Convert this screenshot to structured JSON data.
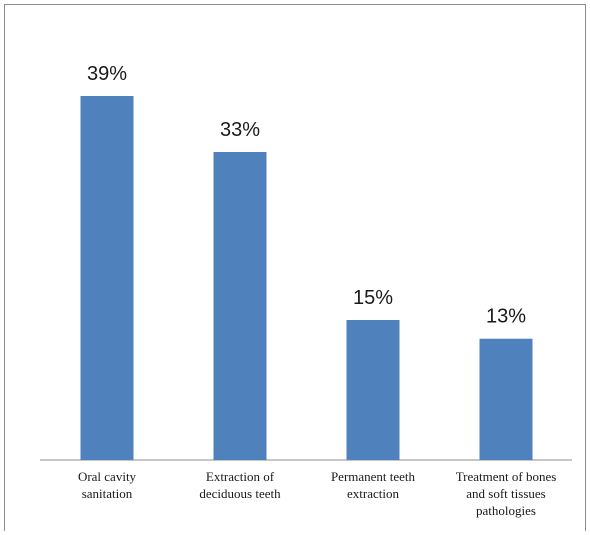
{
  "chart_data": {
    "type": "bar",
    "categories": [
      [
        "Oral cavity",
        "sanitation"
      ],
      [
        "Extraction of",
        "deciduous teeth"
      ],
      [
        "Permanent teeth",
        "extraction"
      ],
      [
        "Treatment of bones",
        "and soft tissues",
        "pathologies"
      ]
    ],
    "values": [
      39,
      33,
      15,
      13
    ],
    "value_labels": [
      "39%",
      "33%",
      "15%",
      "13%"
    ],
    "ylim": [
      0,
      39
    ],
    "bar_color": "#4f81bd",
    "axis_color": "#8c8c8c",
    "grid": false,
    "legend": "none"
  }
}
